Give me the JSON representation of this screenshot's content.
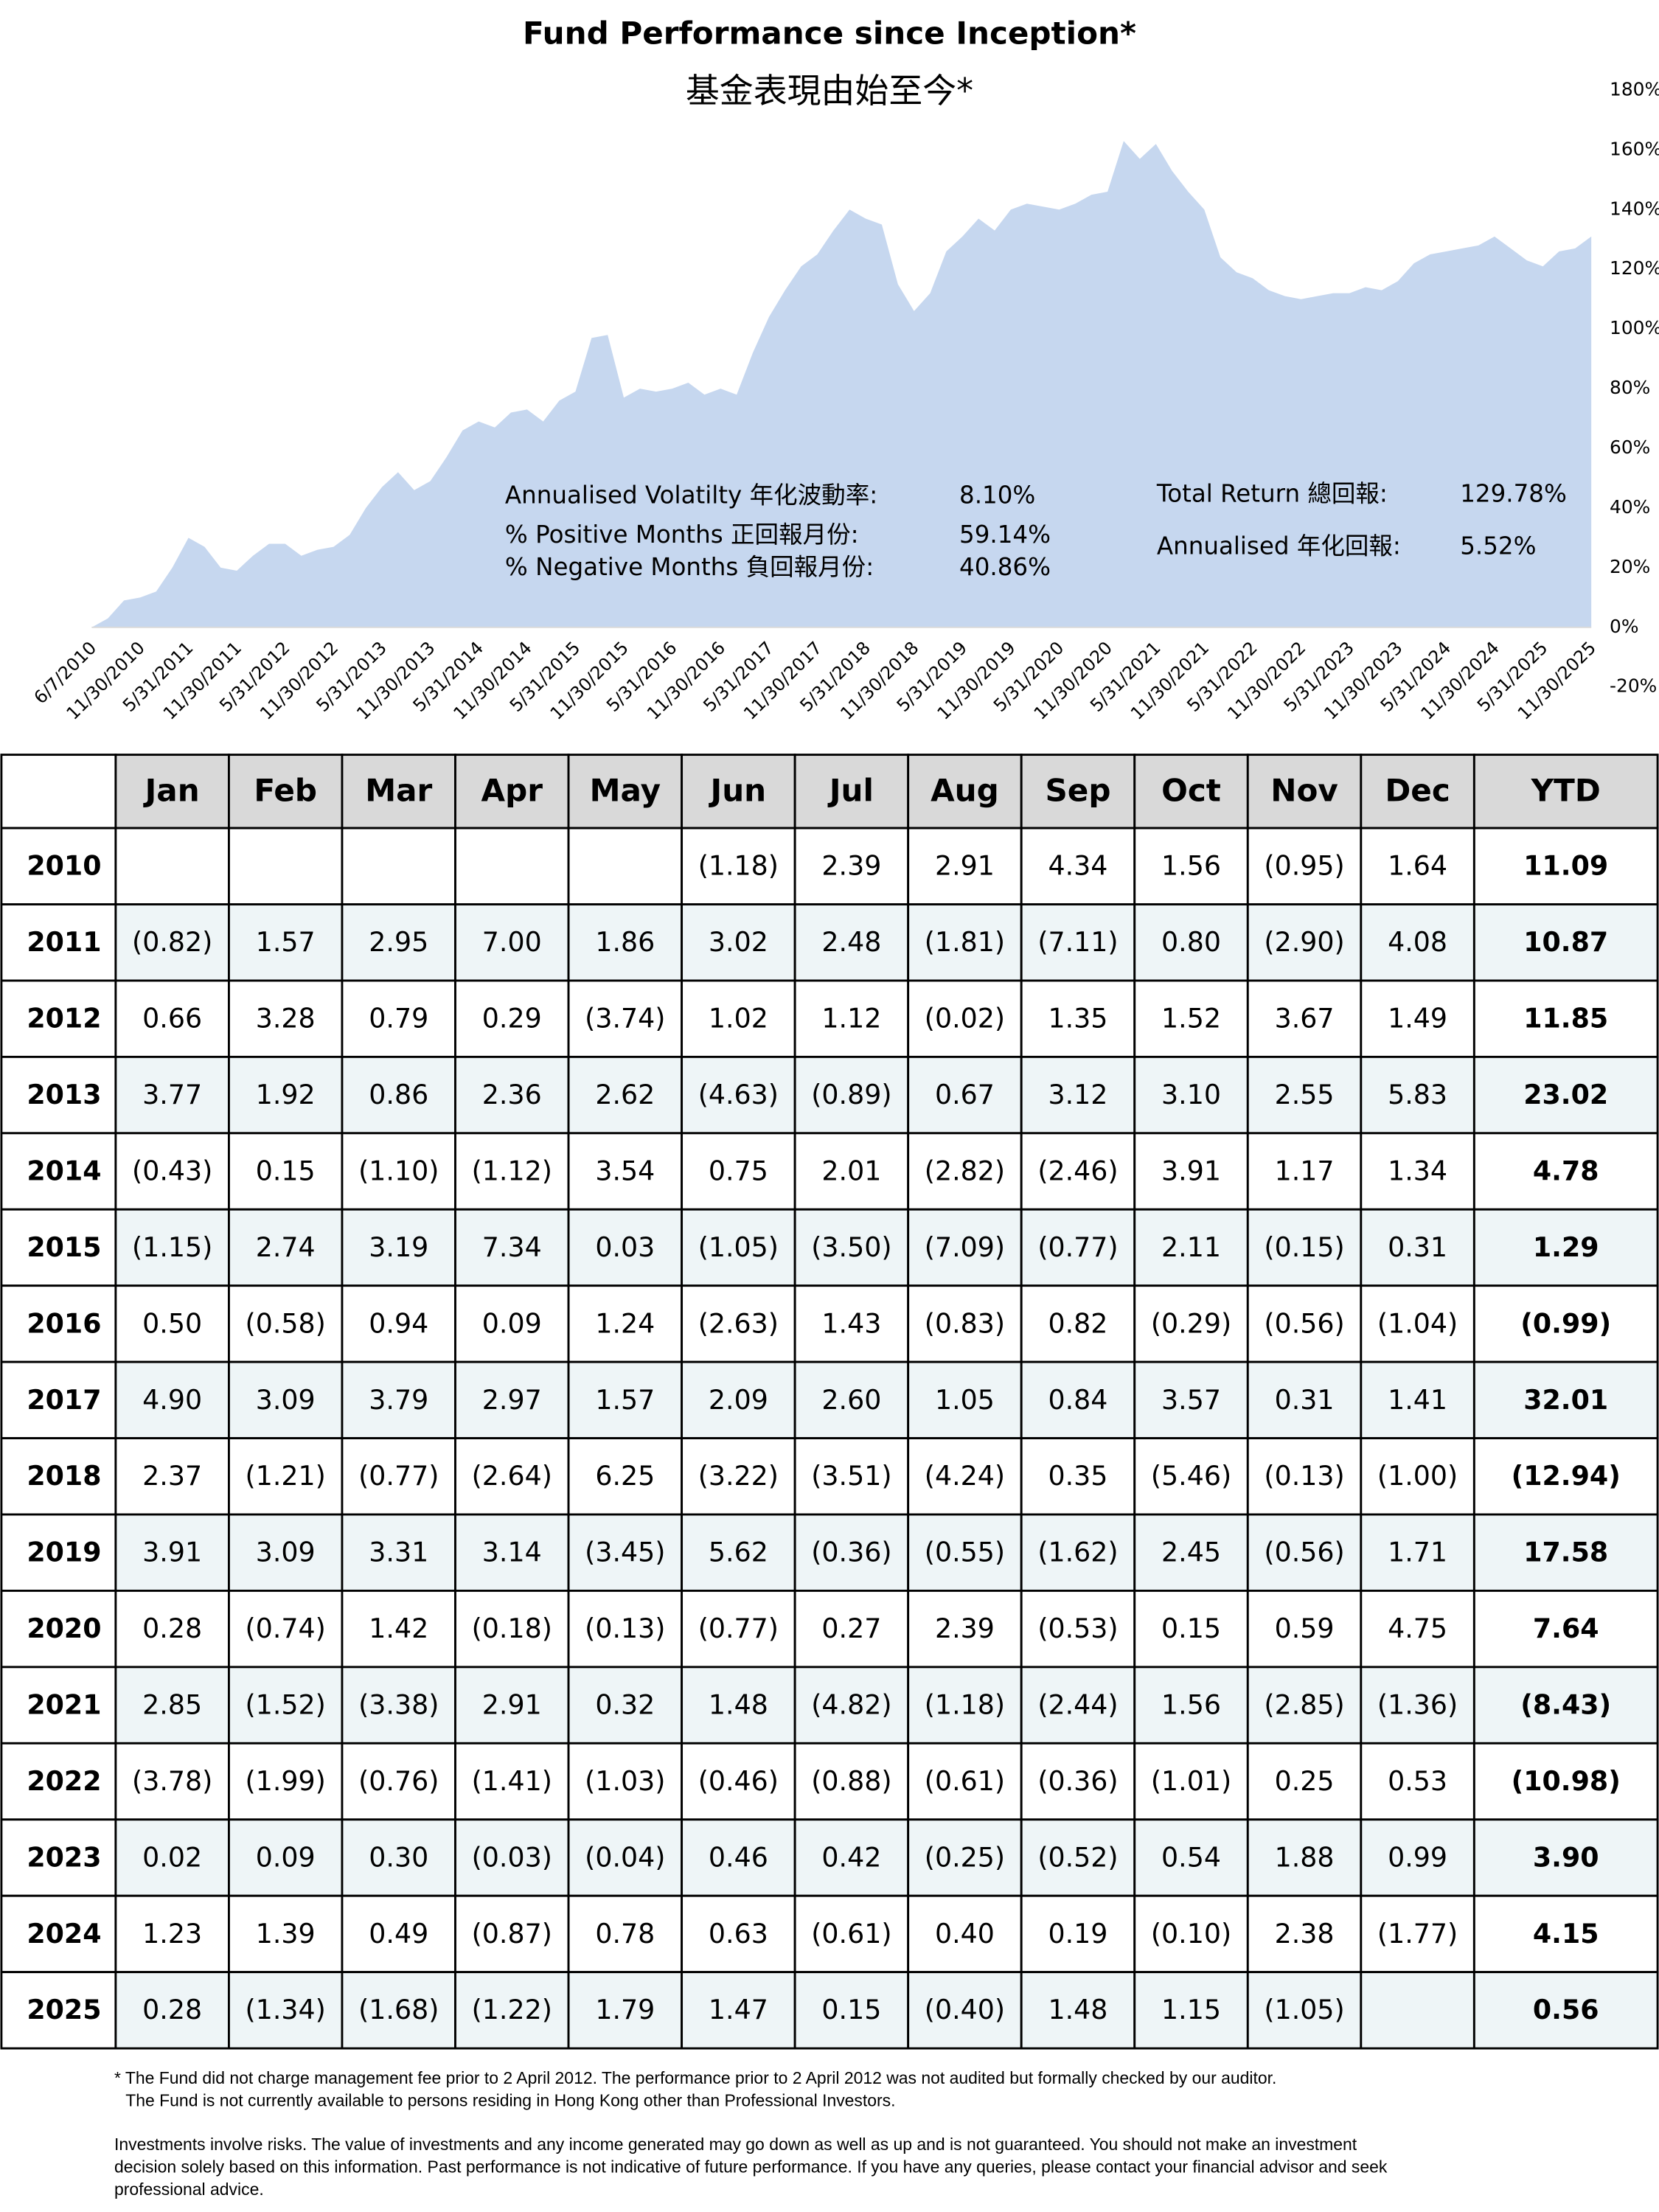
{
  "chart_data": {
    "type": "area",
    "title": "Fund Performance since Inception*",
    "subtitle": "基金表現由始至今*",
    "categories": [
      "6/7/2010",
      null,
      null,
      "11/30/2010",
      null,
      null,
      "5/31/2011",
      null,
      null,
      "11/30/2011",
      null,
      null,
      "5/31/2012",
      null,
      null,
      "11/30/2012",
      null,
      null,
      "5/31/2013",
      null,
      null,
      "11/30/2013",
      null,
      null,
      "5/31/2014",
      null,
      null,
      "11/30/2014",
      null,
      null,
      "5/31/2015",
      null,
      null,
      "11/30/2015",
      null,
      null,
      "5/31/2016",
      null,
      null,
      "11/30/2016",
      null,
      null,
      "5/31/2017",
      null,
      null,
      "11/30/2017",
      null,
      null,
      "5/31/2018",
      null,
      null,
      "11/30/2018",
      null,
      null,
      "5/31/2019",
      null,
      null,
      "11/30/2019",
      null,
      null,
      "5/31/2020",
      null,
      null,
      "11/30/2020",
      null,
      null,
      "5/31/2021",
      null,
      null,
      "11/30/2021",
      null,
      null,
      "5/31/2022",
      null,
      null,
      "11/30/2022",
      null,
      null,
      "5/31/2023",
      null,
      null,
      "11/30/2023",
      null,
      null,
      "5/31/2024",
      null,
      null,
      "11/30/2024",
      null,
      null,
      "5/31/2025",
      null,
      null,
      "11/30/2025"
    ],
    "values": [
      0,
      3,
      9,
      10,
      12,
      20,
      30,
      27,
      20,
      19,
      24,
      28,
      28,
      24,
      26,
      27,
      31,
      40,
      47,
      52,
      46,
      49,
      57,
      66,
      69,
      67,
      72,
      73,
      69,
      76,
      79,
      97,
      98,
      77,
      80,
      79,
      80,
      82,
      78,
      80,
      78,
      92,
      104,
      113,
      121,
      125,
      133,
      140,
      137,
      135,
      115,
      106,
      112,
      126,
      131,
      137,
      133,
      140,
      142,
      141,
      140,
      142,
      145,
      146,
      163,
      157,
      162,
      153,
      146,
      140,
      124,
      119,
      117,
      113,
      111,
      110,
      111,
      112,
      112,
      114,
      113,
      116,
      122,
      125,
      126,
      127,
      128,
      131,
      127,
      123,
      121,
      126,
      127,
      131
    ],
    "color": "#c6d7ef",
    "ylim": [
      -20,
      180
    ],
    "yticks": [
      {
        "value": -20,
        "label": "-20%"
      },
      {
        "value": 0,
        "label": "0%"
      },
      {
        "value": 20,
        "label": "20%"
      },
      {
        "value": 40,
        "label": "40%"
      },
      {
        "value": 60,
        "label": "60%"
      },
      {
        "value": 80,
        "label": "80%"
      },
      {
        "value": 100,
        "label": "100%"
      },
      {
        "value": 120,
        "label": "120%"
      },
      {
        "value": 140,
        "label": "140%"
      },
      {
        "value": 160,
        "label": "160%"
      },
      {
        "value": 180,
        "label": "180%"
      }
    ],
    "annotations": [
      {
        "label": "Annualised Volatilty  年化波動率:",
        "value": "8.10%"
      },
      {
        "label": "% Positive Months  正回報月份:",
        "value": "59.14%"
      },
      {
        "label": "% Negative Months  負回報月份:",
        "value": "40.86%"
      },
      {
        "label": "Total Return 總回報:",
        "value": "129.78%"
      },
      {
        "label": "Annualised 年化回報:",
        "value": "5.52%"
      }
    ]
  },
  "table": {
    "header": [
      null,
      "Jan",
      "Feb",
      "Mar",
      "Apr",
      "May",
      "Jun",
      "Jul",
      "Aug",
      "Sep",
      "Oct",
      "Nov",
      "Dec",
      "YTD"
    ],
    "rows": [
      [
        "2010",
        null,
        null,
        null,
        null,
        null,
        "(1.18)",
        "2.39",
        "2.91",
        "4.34",
        "1.56",
        "(0.95)",
        "1.64",
        "11.09"
      ],
      [
        "2011",
        "(0.82)",
        "1.57",
        "2.95",
        "7.00",
        "1.86",
        "3.02",
        "2.48",
        "(1.81)",
        "(7.11)",
        "0.80",
        "(2.90)",
        "4.08",
        "10.87"
      ],
      [
        "2012",
        "0.66",
        "3.28",
        "0.79",
        "0.29",
        "(3.74)",
        "1.02",
        "1.12",
        "(0.02)",
        "1.35",
        "1.52",
        "3.67",
        "1.49",
        "11.85"
      ],
      [
        "2013",
        "3.77",
        "1.92",
        "0.86",
        "2.36",
        "2.62",
        "(4.63)",
        "(0.89)",
        "0.67",
        "3.12",
        "3.10",
        "2.55",
        "5.83",
        "23.02"
      ],
      [
        "2014",
        "(0.43)",
        "0.15",
        "(1.10)",
        "(1.12)",
        "3.54",
        "0.75",
        "2.01",
        "(2.82)",
        "(2.46)",
        "3.91",
        "1.17",
        "1.34",
        "4.78"
      ],
      [
        "2015",
        "(1.15)",
        "2.74",
        "3.19",
        "7.34",
        "0.03",
        "(1.05)",
        "(3.50)",
        "(7.09)",
        "(0.77)",
        "2.11",
        "(0.15)",
        "0.31",
        "1.29"
      ],
      [
        "2016",
        "0.50",
        "(0.58)",
        "0.94",
        "0.09",
        "1.24",
        "(2.63)",
        "1.43",
        "(0.83)",
        "0.82",
        "(0.29)",
        "(0.56)",
        "(1.04)",
        "(0.99)"
      ],
      [
        "2017",
        "4.90",
        "3.09",
        "3.79",
        "2.97",
        "1.57",
        "2.09",
        "2.60",
        "1.05",
        "0.84",
        "3.57",
        "0.31",
        "1.41",
        "32.01"
      ],
      [
        "2018",
        "2.37",
        "(1.21)",
        "(0.77)",
        "(2.64)",
        "6.25",
        "(3.22)",
        "(3.51)",
        "(4.24)",
        "0.35",
        "(5.46)",
        "(0.13)",
        "(1.00)",
        "(12.94)"
      ],
      [
        "2019",
        "3.91",
        "3.09",
        "3.31",
        "3.14",
        "(3.45)",
        "5.62",
        "(0.36)",
        "(0.55)",
        "(1.62)",
        "2.45",
        "(0.56)",
        "1.71",
        "17.58"
      ],
      [
        "2020",
        "0.28",
        "(0.74)",
        "1.42",
        "(0.18)",
        "(0.13)",
        "(0.77)",
        "0.27",
        "2.39",
        "(0.53)",
        "0.15",
        "0.59",
        "4.75",
        "7.64"
      ],
      [
        "2021",
        "2.85",
        "(1.52)",
        "(3.38)",
        "2.91",
        "0.32",
        "1.48",
        "(4.82)",
        "(1.18)",
        "(2.44)",
        "1.56",
        "(2.85)",
        "(1.36)",
        "(8.43)"
      ],
      [
        "2022",
        "(3.78)",
        "(1.99)",
        "(0.76)",
        "(1.41)",
        "(1.03)",
        "(0.46)",
        "(0.88)",
        "(0.61)",
        "(0.36)",
        "(1.01)",
        "0.25",
        "0.53",
        "(10.98)"
      ],
      [
        "2023",
        "0.02",
        "0.09",
        "0.30",
        "(0.03)",
        "(0.04)",
        "0.46",
        "0.42",
        "(0.25)",
        "(0.52)",
        "0.54",
        "1.88",
        "0.99",
        "3.90"
      ],
      [
        "2024",
        "1.23",
        "1.39",
        "0.49",
        "(0.87)",
        "0.78",
        "0.63",
        "(0.61)",
        "0.40",
        "0.19",
        "(0.10)",
        "2.38",
        "(1.77)",
        "4.15"
      ],
      [
        "2025",
        "0.28",
        "(1.34)",
        "(1.68)",
        "(1.22)",
        "1.79",
        "1.47",
        "0.15",
        "(0.40)",
        "1.48",
        "1.15",
        "(1.05)",
        null,
        "0.56"
      ]
    ]
  },
  "footnotes": [
    "* The Fund did not charge management fee prior to 2 April 2012.  The performance prior to 2 April 2012 was not audited but formally checked by our auditor.",
    "The Fund is not currently available to persons residing in Hong Kong other than Professional Investors."
  ],
  "disclaimer": [
    "Investments involve risks. The value of investments and any income generated may go down as well as up and is not guaranteed. You should not make an investment",
    "decision solely based on this information. Past performance is not indicative of future performance. If you have any queries, please contact your financial advisor and seek",
    "professional advice."
  ]
}
